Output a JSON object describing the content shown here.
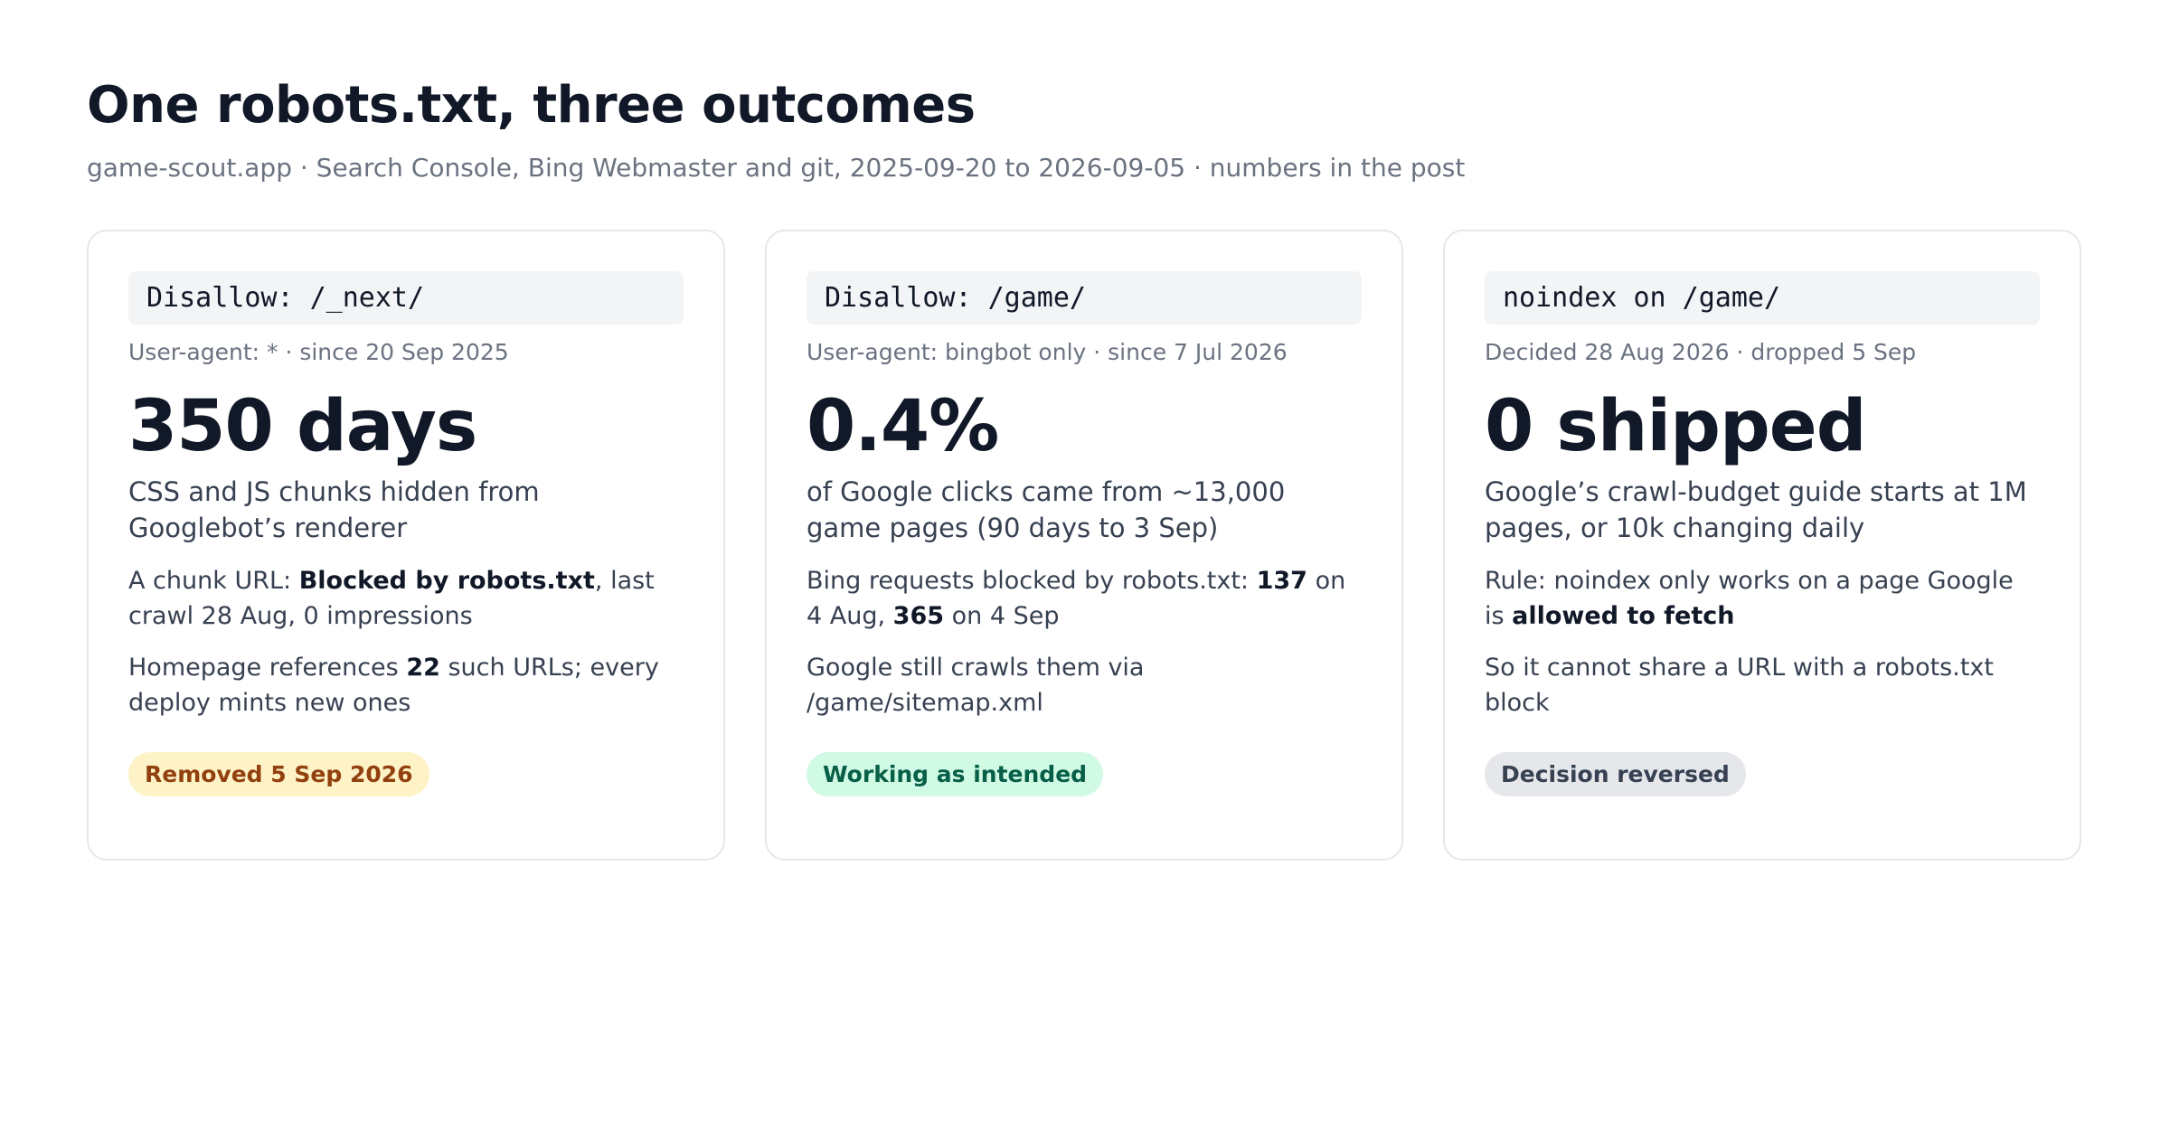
{
  "header": {
    "title": "One robots.txt, three outcomes",
    "subtitle": "game-scout.app · Search Console, Bing Webmaster and git, 2025-09-20 to 2026-09-05 · numbers in the post"
  },
  "cards": [
    {
      "code": "Disallow: /_next/",
      "meta": "User-agent: * · since 20 Sep 2025",
      "stat": "350 days",
      "description": "CSS and JS chunks hidden from Googlebot’s renderer",
      "notes": [
        [
          {
            "text": "A chunk URL: "
          },
          {
            "text": "Blocked by robots.txt",
            "bold": true
          },
          {
            "text": ", last crawl 28 Aug, 0 impressions"
          }
        ],
        [
          {
            "text": "Homepage references "
          },
          {
            "text": "22",
            "bold": true
          },
          {
            "text": " such URLs; every deploy mints new ones"
          }
        ]
      ],
      "badge": {
        "label": "Removed 5 Sep 2026",
        "background": "#fef3c7",
        "color": "#92400e"
      }
    },
    {
      "code": "Disallow: /game/",
      "meta": "User-agent: bingbot only · since 7 Jul 2026",
      "stat": "0.4%",
      "description": "of Google clicks came from ~13,000 game pages (90 days to 3 Sep)",
      "notes": [
        [
          {
            "text": "Bing requests blocked by robots.txt: "
          },
          {
            "text": "137",
            "bold": true
          },
          {
            "text": " on 4 Aug, "
          },
          {
            "text": "365",
            "bold": true
          },
          {
            "text": " on 4 Sep"
          }
        ],
        [
          {
            "text": "Google still crawls them via /game/sitemap.xml"
          }
        ]
      ],
      "badge": {
        "label": "Working as intended",
        "background": "#d1fae5",
        "color": "#065f46"
      }
    },
    {
      "code": "noindex on /game/",
      "meta": "Decided 28 Aug 2026 · dropped 5 Sep",
      "stat": "0 shipped",
      "description": "Google’s crawl-budget guide starts at 1M pages, or 10k changing daily",
      "notes": [
        [
          {
            "text": "Rule: noindex only works on a page Google is "
          },
          {
            "text": "allowed to fetch",
            "bold": true
          }
        ],
        [
          {
            "text": "So it cannot share a URL with a robots.txt block"
          }
        ]
      ],
      "badge": {
        "label": "Decision reversed",
        "background": "#e5e7eb",
        "color": "#374151"
      }
    }
  ]
}
